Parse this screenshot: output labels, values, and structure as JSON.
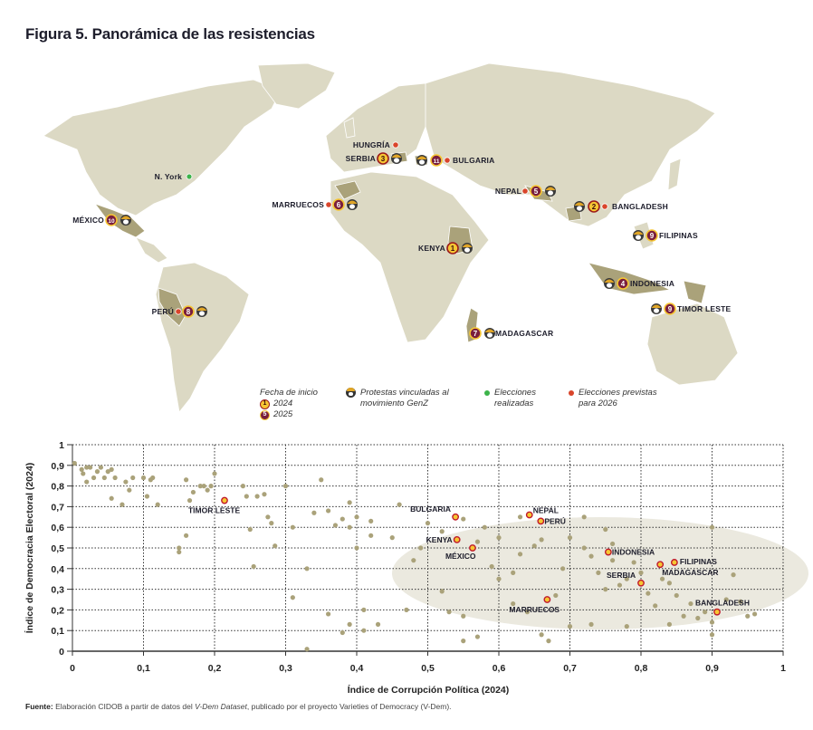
{
  "title": "Figura 5. Panorámica de las resistencias",
  "colors": {
    "land": "#dcd9c4",
    "land_highlight": "#aaa27a",
    "badge_2024_fill": "#f6c633",
    "badge_2024_border": "#9b1b1b",
    "badge_2025_fill": "#7a1f3d",
    "badge_2025_border": "#f6c633",
    "elections_held": "#3cb34a",
    "elections_planned": "#d9452b",
    "scatter_point": "#aaa27a",
    "ellipse": "#ebe9df"
  },
  "map": {
    "labels": [
      {
        "name": "N. York",
        "type": "elections_held"
      },
      {
        "name": "HUNGRÍA",
        "type": "elections_planned"
      },
      {
        "name": "SERBIA",
        "order": "3",
        "year": "2024",
        "genz": true
      },
      {
        "name": "BULGARIA",
        "order": "11",
        "year": "2025",
        "genz": true,
        "elections_planned": true
      },
      {
        "name": "MARRUECOS",
        "order": "6",
        "year": "2025",
        "genz": true,
        "elections_planned": true
      },
      {
        "name": "MÉXICO",
        "order": "10",
        "year": "2025",
        "genz": true
      },
      {
        "name": "NEPAL",
        "order": "5",
        "year": "2025",
        "genz": true,
        "elections_planned": true
      },
      {
        "name": "BANGLADESH",
        "order": "2",
        "year": "2024",
        "genz": true,
        "elections_planned": true
      },
      {
        "name": "FILIPINAS",
        "order": "9",
        "year": "2025",
        "genz": true
      },
      {
        "name": "KENYA",
        "order": "1",
        "year": "2024",
        "genz": true
      },
      {
        "name": "INDONESIA",
        "order": "4",
        "year": "2025",
        "genz": true
      },
      {
        "name": "TIMOR LESTE",
        "order": "9",
        "year": "2025",
        "genz": true
      },
      {
        "name": "PERÚ",
        "order": "8",
        "year": "2025",
        "genz": true,
        "elections_planned": true
      },
      {
        "name": "MADAGASCAR",
        "order": "7",
        "year": "2025",
        "genz": true
      }
    ]
  },
  "legend": {
    "start_date_title": "Fecha de inicio",
    "year_2024": "2024",
    "year_2025": "2025",
    "badge_2024_num": "1",
    "badge_2025_num": "5",
    "genz_line1": "Protestas vinculadas al",
    "genz_line2": "movimiento GenZ",
    "held_line1": "Elecciones",
    "held_line2": "realizadas",
    "planned_line1": "Elecciones previstas",
    "planned_line2": "para 2026"
  },
  "chart_data": {
    "type": "scatter",
    "title": "",
    "xlabel": "Índice de Corrupción Política (2024)",
    "ylabel": "Índice de Democracia Electoral (2024)",
    "xlim": [
      0,
      1
    ],
    "ylim": [
      0,
      1
    ],
    "xticks": [
      "0",
      "0,1",
      "0,2",
      "0,3",
      "0,4",
      "0,5",
      "0,6",
      "0,7",
      "0,8",
      "0,9",
      "1"
    ],
    "yticks": [
      "0",
      "0,1",
      "0,2",
      "0,3",
      "0,4",
      "0,5",
      "0,6",
      "0,7",
      "0,8",
      "0,9",
      "1"
    ],
    "grid": true,
    "highlighted": [
      {
        "label": "TIMOR LESTE",
        "x": 0.214,
        "y": 0.73
      },
      {
        "label": "BULGARIA",
        "x": 0.539,
        "y": 0.65
      },
      {
        "label": "KENYA",
        "x": 0.541,
        "y": 0.54
      },
      {
        "label": "MÉXICO",
        "x": 0.563,
        "y": 0.5
      },
      {
        "label": "NEPAL",
        "x": 0.643,
        "y": 0.66
      },
      {
        "label": "PERÚ",
        "x": 0.659,
        "y": 0.63
      },
      {
        "label": "MARRUECOS",
        "x": 0.668,
        "y": 0.25
      },
      {
        "label": "INDONESIA",
        "x": 0.754,
        "y": 0.48
      },
      {
        "label": "SERBIA",
        "x": 0.8,
        "y": 0.33
      },
      {
        "label": "MADAGASCAR",
        "x": 0.827,
        "y": 0.42
      },
      {
        "label": "FILIPINAS",
        "x": 0.847,
        "y": 0.43
      },
      {
        "label": "BANGLADESH",
        "x": 0.907,
        "y": 0.19
      }
    ],
    "other_points": [
      [
        0.003,
        0.91
      ],
      [
        0.013,
        0.88
      ],
      [
        0.015,
        0.86
      ],
      [
        0.02,
        0.89
      ],
      [
        0.025,
        0.89
      ],
      [
        0.03,
        0.84
      ],
      [
        0.035,
        0.87
      ],
      [
        0.04,
        0.89
      ],
      [
        0.045,
        0.84
      ],
      [
        0.05,
        0.87
      ],
      [
        0.055,
        0.88
      ],
      [
        0.02,
        0.82
      ],
      [
        0.055,
        0.74
      ],
      [
        0.06,
        0.84
      ],
      [
        0.07,
        0.71
      ],
      [
        0.075,
        0.82
      ],
      [
        0.08,
        0.78
      ],
      [
        0.085,
        0.84
      ],
      [
        0.1,
        0.84
      ],
      [
        0.105,
        0.75
      ],
      [
        0.11,
        0.83
      ],
      [
        0.113,
        0.84
      ],
      [
        0.12,
        0.71
      ],
      [
        0.16,
        0.56
      ],
      [
        0.16,
        0.83
      ],
      [
        0.165,
        0.73
      ],
      [
        0.17,
        0.77
      ],
      [
        0.18,
        0.8
      ],
      [
        0.185,
        0.8
      ],
      [
        0.19,
        0.78
      ],
      [
        0.195,
        0.8
      ],
      [
        0.2,
        0.86
      ],
      [
        0.15,
        0.48
      ],
      [
        0.15,
        0.5
      ],
      [
        0.24,
        0.8
      ],
      [
        0.245,
        0.75
      ],
      [
        0.25,
        0.59
      ],
      [
        0.255,
        0.41
      ],
      [
        0.26,
        0.75
      ],
      [
        0.27,
        0.76
      ],
      [
        0.275,
        0.65
      ],
      [
        0.28,
        0.62
      ],
      [
        0.285,
        0.51
      ],
      [
        0.3,
        0.8
      ],
      [
        0.31,
        0.6
      ],
      [
        0.33,
        0.4
      ],
      [
        0.35,
        0.83
      ],
      [
        0.34,
        0.67
      ],
      [
        0.36,
        0.68
      ],
      [
        0.37,
        0.61
      ],
      [
        0.38,
        0.64
      ],
      [
        0.39,
        0.72
      ],
      [
        0.39,
        0.6
      ],
      [
        0.4,
        0.65
      ],
      [
        0.4,
        0.5
      ],
      [
        0.42,
        0.63
      ],
      [
        0.42,
        0.56
      ],
      [
        0.45,
        0.55
      ],
      [
        0.46,
        0.71
      ],
      [
        0.48,
        0.44
      ],
      [
        0.49,
        0.5
      ],
      [
        0.5,
        0.62
      ],
      [
        0.52,
        0.58
      ],
      [
        0.52,
        0.29
      ],
      [
        0.53,
        0.19
      ],
      [
        0.55,
        0.64
      ],
      [
        0.57,
        0.53
      ],
      [
        0.58,
        0.6
      ],
      [
        0.59,
        0.41
      ],
      [
        0.6,
        0.55
      ],
      [
        0.6,
        0.35
      ],
      [
        0.62,
        0.38
      ],
      [
        0.63,
        0.47
      ],
      [
        0.65,
        0.51
      ],
      [
        0.66,
        0.54
      ],
      [
        0.68,
        0.27
      ],
      [
        0.69,
        0.4
      ],
      [
        0.7,
        0.55
      ],
      [
        0.72,
        0.5
      ],
      [
        0.73,
        0.46
      ],
      [
        0.74,
        0.38
      ],
      [
        0.75,
        0.3
      ],
      [
        0.76,
        0.44
      ],
      [
        0.77,
        0.32
      ],
      [
        0.78,
        0.35
      ],
      [
        0.79,
        0.43
      ],
      [
        0.8,
        0.38
      ],
      [
        0.81,
        0.28
      ],
      [
        0.82,
        0.22
      ],
      [
        0.83,
        0.35
      ],
      [
        0.84,
        0.33
      ],
      [
        0.85,
        0.27
      ],
      [
        0.86,
        0.17
      ],
      [
        0.87,
        0.23
      ],
      [
        0.88,
        0.16
      ],
      [
        0.89,
        0.19
      ],
      [
        0.9,
        0.14
      ],
      [
        0.92,
        0.25
      ],
      [
        0.93,
        0.37
      ],
      [
        0.94,
        0.24
      ],
      [
        0.95,
        0.17
      ],
      [
        0.96,
        0.18
      ],
      [
        0.9,
        0.6
      ],
      [
        0.63,
        0.65
      ],
      [
        0.72,
        0.65
      ],
      [
        0.75,
        0.59
      ],
      [
        0.76,
        0.52
      ],
      [
        0.55,
        0.17
      ],
      [
        0.55,
        0.05
      ],
      [
        0.62,
        0.23
      ],
      [
        0.64,
        0.19
      ],
      [
        0.66,
        0.08
      ],
      [
        0.7,
        0.12
      ],
      [
        0.73,
        0.13
      ],
      [
        0.78,
        0.12
      ],
      [
        0.84,
        0.13
      ],
      [
        0.9,
        0.08
      ],
      [
        0.43,
        0.13
      ],
      [
        0.41,
        0.1
      ],
      [
        0.41,
        0.2
      ],
      [
        0.47,
        0.2
      ],
      [
        0.39,
        0.13
      ],
      [
        0.31,
        0.26
      ],
      [
        0.33,
        0.01
      ],
      [
        0.36,
        0.18
      ],
      [
        0.38,
        0.09
      ],
      [
        0.57,
        0.07
      ],
      [
        0.67,
        0.05
      ]
    ]
  },
  "source": {
    "label": "Fuente:",
    "text1": " Elaboración CIDOB a partir de datos del ",
    "italic": "V-Dem Dataset",
    "text2": ", publicado por el proyecto Varieties of Democracy (V-Dem)."
  }
}
